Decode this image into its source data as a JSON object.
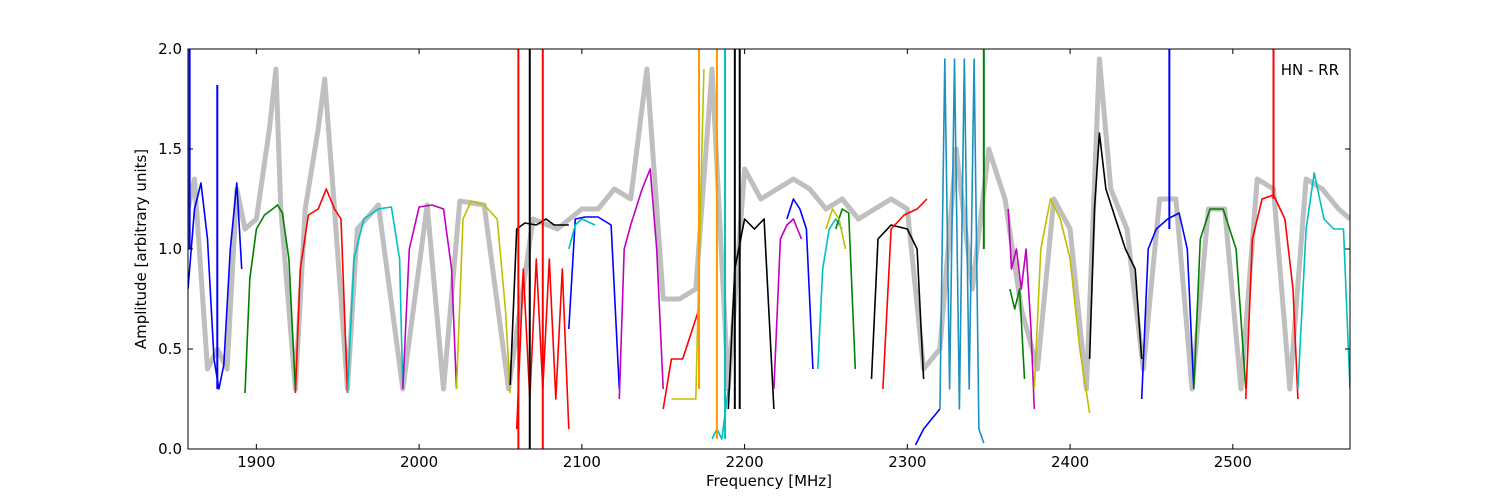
{
  "chart_data": {
    "type": "line",
    "xlabel": "Frequency [MHz]",
    "ylabel": "Amplitude [arbitrary units]",
    "annotation": "HN - RR",
    "annotation_position": "top-right",
    "xlim": [
      1858,
      2572
    ],
    "ylim": [
      0,
      2.0
    ],
    "x_ticks": [
      1900,
      2000,
      2100,
      2200,
      2300,
      2400,
      2500
    ],
    "x_tick_labels": [
      "1900",
      "2000",
      "2100",
      "2200",
      "2300",
      "2400",
      "2500"
    ],
    "y_ticks": [
      0.0,
      0.5,
      1.0,
      1.5,
      2.0
    ],
    "y_tick_labels": [
      "0.0",
      "0.5",
      "1.0",
      "1.5",
      "2.0"
    ],
    "grid": false,
    "legend": "none",
    "background": {
      "color": "#bfbfbf",
      "x": [
        1858,
        1862,
        1870,
        1876,
        1882,
        1888,
        1893,
        1900,
        1908,
        1912,
        1915,
        1924,
        1930,
        1938,
        1942,
        1948,
        1956,
        1962,
        1975,
        1990,
        2005,
        2015,
        2025,
        2040,
        2055,
        2070,
        2085,
        2100,
        2110,
        2120,
        2130,
        2140,
        2150,
        2160,
        2170,
        2180,
        2190,
        2200,
        2210,
        2220,
        2230,
        2240,
        2250,
        2260,
        2270,
        2280,
        2290,
        2300,
        2310,
        2320,
        2330,
        2340,
        2350,
        2360,
        2370,
        2380,
        2390,
        2400,
        2410,
        2418,
        2425,
        2435,
        2445,
        2455,
        2465,
        2475,
        2485,
        2495,
        2505,
        2515,
        2525,
        2535,
        2545,
        2555,
        2565,
        2572
      ],
      "y": [
        1.2,
        1.35,
        0.4,
        0.5,
        0.4,
        1.3,
        1.1,
        1.15,
        1.6,
        1.9,
        1.2,
        0.3,
        1.2,
        1.6,
        1.85,
        1.2,
        0.3,
        1.1,
        1.22,
        0.3,
        1.22,
        0.3,
        1.24,
        1.22,
        0.3,
        1.15,
        1.1,
        1.2,
        1.2,
        1.3,
        1.25,
        1.9,
        0.75,
        0.75,
        0.8,
        1.9,
        0.3,
        1.4,
        1.25,
        1.3,
        1.35,
        1.3,
        1.2,
        1.25,
        1.15,
        1.2,
        1.25,
        1.2,
        0.4,
        0.5,
        1.5,
        0.8,
        1.5,
        1.25,
        0.7,
        0.4,
        1.25,
        1.1,
        0.3,
        1.95,
        1.3,
        1.1,
        0.4,
        1.25,
        1.25,
        0.3,
        1.2,
        1.2,
        0.3,
        1.35,
        1.3,
        0.3,
        1.35,
        1.3,
        1.2,
        1.15
      ]
    },
    "series": [
      {
        "color": "#0000ff",
        "x": [
          1858,
          1862,
          1866,
          1870,
          1874,
          1877,
          1880,
          1884,
          1888,
          1891
        ],
        "y": [
          0.8,
          1.2,
          1.33,
          1.05,
          0.45,
          0.3,
          0.42,
          1.0,
          1.33,
          0.9
        ]
      },
      {
        "color": "#008000",
        "x": [
          1893,
          1896,
          1900,
          1905,
          1910,
          1913,
          1916,
          1920,
          1924
        ],
        "y": [
          0.28,
          0.85,
          1.1,
          1.17,
          1.2,
          1.22,
          1.18,
          0.95,
          0.3
        ]
      },
      {
        "color": "#ff0000",
        "x": [
          1924,
          1927,
          1932,
          1938,
          1943,
          1948,
          1952,
          1956
        ],
        "y": [
          0.28,
          0.9,
          1.17,
          1.2,
          1.3,
          1.2,
          1.15,
          0.28
        ]
      },
      {
        "color": "#00bfbf",
        "x": [
          1956,
          1960,
          1966,
          1975,
          1983,
          1988,
          1990
        ],
        "y": [
          0.28,
          0.95,
          1.15,
          1.2,
          1.21,
          0.95,
          0.3
        ]
      },
      {
        "color": "#bf00bf",
        "x": [
          1990,
          1994,
          2000,
          2008,
          2015,
          2020,
          2023
        ],
        "y": [
          0.3,
          1.0,
          1.21,
          1.22,
          1.2,
          0.9,
          0.3
        ]
      },
      {
        "color": "#bfbf00",
        "x": [
          2023,
          2027,
          2032,
          2040,
          2048,
          2053,
          2056
        ],
        "y": [
          0.3,
          1.15,
          1.24,
          1.22,
          1.15,
          0.7,
          0.28
        ]
      },
      {
        "color": "#000000",
        "x": [
          2056,
          2060,
          2065,
          2072,
          2078,
          2083,
          2088,
          2092
        ],
        "y": [
          0.32,
          1.1,
          1.13,
          1.12,
          1.15,
          1.12,
          1.12,
          1.12
        ]
      },
      {
        "color": "#ff0000",
        "x": [
          2060,
          2064,
          2068,
          2072,
          2076,
          2080,
          2084,
          2088,
          2092
        ],
        "y": [
          0.1,
          0.9,
          0.25,
          0.95,
          0.3,
          0.95,
          0.25,
          0.9,
          0.1
        ]
      },
      {
        "color": "#0000ff",
        "x": [
          2092,
          2096,
          2102,
          2110,
          2118,
          2123
        ],
        "y": [
          0.6,
          1.15,
          1.16,
          1.16,
          1.12,
          0.3
        ]
      },
      {
        "color": "#00bfbf",
        "x": [
          2092,
          2096,
          2100,
          2108
        ],
        "y": [
          1.0,
          1.12,
          1.15,
          1.12
        ]
      },
      {
        "color": "#bf00bf",
        "x": [
          2123,
          2126,
          2130,
          2137,
          2142,
          2146,
          2150
        ],
        "y": [
          0.25,
          1.0,
          1.12,
          1.3,
          1.4,
          1.0,
          0.3
        ]
      },
      {
        "color": "#ff0000",
        "x": [
          2150,
          2155,
          2162,
          2168,
          2172
        ],
        "y": [
          0.2,
          0.45,
          0.45,
          0.6,
          0.7
        ]
      },
      {
        "color": "#bfbf00",
        "x": [
          2155,
          2160,
          2165,
          2170,
          2175
        ],
        "y": [
          0.25,
          0.25,
          0.25,
          0.25,
          1.9
        ]
      },
      {
        "color": "#00bfbf",
        "x": [
          2180,
          2183,
          2186,
          2190
        ],
        "y": [
          0.05,
          0.1,
          0.05,
          0.3
        ]
      },
      {
        "color": "#000000",
        "x": [
          2190,
          2194,
          2200,
          2206,
          2212,
          2218
        ],
        "y": [
          0.2,
          0.9,
          1.15,
          1.1,
          1.15,
          0.2
        ]
      },
      {
        "color": "#bf00bf",
        "x": [
          2218,
          2222,
          2226,
          2230,
          2235
        ],
        "y": [
          0.3,
          1.05,
          1.12,
          1.15,
          1.05
        ]
      },
      {
        "color": "#0000ff",
        "x": [
          2226,
          2230,
          2234,
          2238,
          2242
        ],
        "y": [
          1.15,
          1.25,
          1.2,
          1.1,
          0.4
        ]
      },
      {
        "color": "#00bfbf",
        "x": [
          2245,
          2248,
          2252,
          2256,
          2260
        ],
        "y": [
          0.4,
          0.9,
          1.1,
          1.15,
          1.1
        ]
      },
      {
        "color": "#008000",
        "x": [
          2256,
          2260,
          2264,
          2268
        ],
        "y": [
          1.1,
          1.2,
          1.18,
          0.4
        ]
      },
      {
        "color": "#bfbf00",
        "x": [
          2250,
          2254,
          2258,
          2262
        ],
        "y": [
          1.1,
          1.2,
          1.15,
          1.0
        ]
      },
      {
        "color": "#000000",
        "x": [
          2278,
          2282,
          2290,
          2300,
          2306,
          2310
        ],
        "y": [
          0.35,
          1.05,
          1.12,
          1.1,
          1.0,
          0.35
        ]
      },
      {
        "color": "#ff0000",
        "x": [
          2285,
          2290,
          2298,
          2306,
          2312
        ],
        "y": [
          0.3,
          1.1,
          1.17,
          1.2,
          1.25
        ]
      },
      {
        "color": "#0000ff",
        "x": [
          2305,
          2310,
          2315,
          2320
        ],
        "y": [
          0.02,
          0.1,
          0.15,
          0.2
        ]
      },
      {
        "color": "#1e90c0",
        "x": [
          2320,
          2323,
          2326,
          2329,
          2332,
          2335,
          2338,
          2341,
          2344,
          2347
        ],
        "y": [
          0.2,
          1.95,
          0.3,
          1.95,
          0.2,
          1.95,
          0.3,
          1.95,
          0.1,
          0.03
        ]
      },
      {
        "color": "#bf00bf",
        "x": [
          2362,
          2364,
          2367,
          2370,
          2373,
          2376,
          2378
        ],
        "y": [
          1.2,
          0.9,
          1.0,
          0.8,
          1.0,
          0.6,
          0.2
        ]
      },
      {
        "color": "#008000",
        "x": [
          2363,
          2366,
          2369,
          2372
        ],
        "y": [
          0.8,
          0.7,
          0.8,
          0.35
        ]
      },
      {
        "color": "#bfbf00",
        "x": [
          2378,
          2382,
          2388,
          2394,
          2400,
          2406,
          2412
        ],
        "y": [
          0.3,
          1.0,
          1.25,
          1.15,
          0.95,
          0.5,
          0.18
        ]
      },
      {
        "color": "#000000",
        "x": [
          2412,
          2415,
          2418,
          2422,
          2428,
          2434,
          2440,
          2444
        ],
        "y": [
          0.45,
          1.2,
          1.58,
          1.3,
          1.15,
          1.0,
          0.9,
          0.45
        ]
      },
      {
        "color": "#0000ff",
        "x": [
          2444,
          2448,
          2453,
          2460,
          2467,
          2472,
          2476
        ],
        "y": [
          0.25,
          1.0,
          1.1,
          1.15,
          1.18,
          1.0,
          0.3
        ]
      },
      {
        "color": "#008000",
        "x": [
          2476,
          2480,
          2486,
          2494,
          2502,
          2508
        ],
        "y": [
          0.3,
          1.05,
          1.2,
          1.2,
          1.0,
          0.3
        ]
      },
      {
        "color": "#ff0000",
        "x": [
          2508,
          2512,
          2518,
          2525,
          2532,
          2537,
          2540
        ],
        "y": [
          0.25,
          1.05,
          1.25,
          1.27,
          1.15,
          0.8,
          0.25
        ]
      },
      {
        "color": "#00bfbf",
        "x": [
          2540,
          2545,
          2550,
          2556,
          2562,
          2568,
          2572
        ],
        "y": [
          0.3,
          1.1,
          1.38,
          1.15,
          1.1,
          1.1,
          0.3
        ]
      }
    ],
    "spikes": [
      {
        "color": "#0000ff",
        "x": 1859,
        "y0": 1.0,
        "y1": 2.0
      },
      {
        "color": "#0000ff",
        "x": 1876,
        "y0": 0.3,
        "y1": 1.82
      },
      {
        "color": "#ff0000",
        "x": 2061,
        "y0": 0.0,
        "y1": 2.0
      },
      {
        "color": "#000000",
        "x": 2068,
        "y0": 0.0,
        "y1": 2.0
      },
      {
        "color": "#ff0000",
        "x": 2076,
        "y0": 0.0,
        "y1": 2.0
      },
      {
        "color": "#ff9900",
        "x": 2172,
        "y0": 0.3,
        "y1": 2.0
      },
      {
        "color": "#ff9900",
        "x": 2183,
        "y0": 0.05,
        "y1": 2.0
      },
      {
        "color": "#000000",
        "x": 2194,
        "y0": 0.2,
        "y1": 2.0
      },
      {
        "color": "#000000",
        "x": 2197,
        "y0": 0.2,
        "y1": 2.0
      },
      {
        "color": "#00bfbf",
        "x": 2188,
        "y0": 0.05,
        "y1": 2.0
      },
      {
        "color": "#008000",
        "x": 2347,
        "y0": 1.0,
        "y1": 2.0
      },
      {
        "color": "#0000ff",
        "x": 2461,
        "y0": 1.1,
        "y1": 2.0
      },
      {
        "color": "#ff0000",
        "x": 2525,
        "y0": 1.25,
        "y1": 2.0
      }
    ]
  }
}
